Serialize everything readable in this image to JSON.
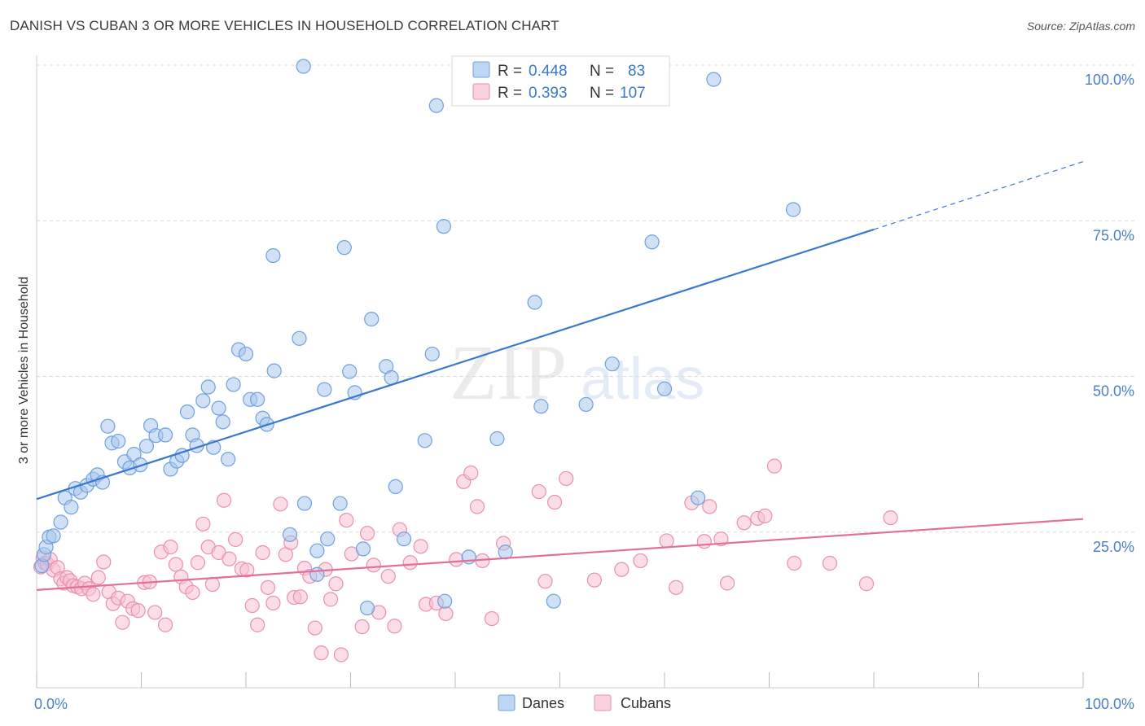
{
  "header": {
    "title": "DANISH VS CUBAN 3 OR MORE VEHICLES IN HOUSEHOLD CORRELATION CHART",
    "source": "Source: ZipAtlas.com"
  },
  "watermark": {
    "zip": "ZIP",
    "atlas": "atlas"
  },
  "legend_box": {
    "rows": [
      {
        "r_label": "R =",
        "r_value": "0.448",
        "n_label": "N =",
        "n_value": "83",
        "color": "#6fa0dc"
      },
      {
        "r_label": "R =",
        "r_value": "0.393",
        "n_label": "N =",
        "n_value": "107",
        "color": "#f0a8c0"
      }
    ]
  },
  "colors": {
    "danes_fill": "#a9c8ee",
    "danes_stroke": "#6fa0dc",
    "danes_line": "#3a78cf",
    "cubans_fill": "#f7c1d3",
    "cubans_stroke": "#ea8fad",
    "cubans_line": "#e0709a",
    "tick_text": "#4a7ec9",
    "grid": "#d9d9d9"
  },
  "chart_data": {
    "type": "scatter",
    "title": "DANISH VS CUBAN 3 OR MORE VEHICLES IN HOUSEHOLD CORRELATION CHART",
    "xlabel": "",
    "ylabel": "3 or more Vehicles in Household",
    "xlim": [
      0,
      100
    ],
    "ylim": [
      0,
      100
    ],
    "x_tick_labels": [
      "0.0%",
      "100.0%"
    ],
    "y_tick_labels": [
      "25.0%",
      "50.0%",
      "75.0%",
      "100.0%"
    ],
    "y_ticks": [
      25,
      50,
      75,
      100
    ],
    "grid": true,
    "legend_position": "bottom-center",
    "series": [
      {
        "name": "Danes",
        "r": 0.448,
        "n": 83,
        "trend": {
          "x0": 0,
          "y0": 30.3,
          "x1": 80,
          "y1": 73.6,
          "dashed_to_x": 100,
          "dashed_to_y": 84.5
        },
        "points": [
          [
            0.5,
            19.6
          ],
          [
            0.7,
            21.4
          ],
          [
            0.9,
            22.6
          ],
          [
            1.2,
            24.2
          ],
          [
            1.6,
            24.4
          ],
          [
            2.3,
            26.6
          ],
          [
            2.7,
            30.5
          ],
          [
            3.3,
            29.0
          ],
          [
            3.7,
            32.0
          ],
          [
            4.2,
            31.4
          ],
          [
            4.8,
            32.5
          ],
          [
            5.4,
            33.5
          ],
          [
            5.8,
            34.2
          ],
          [
            6.3,
            33.0
          ],
          [
            6.8,
            42.0
          ],
          [
            7.2,
            39.3
          ],
          [
            7.8,
            39.6
          ],
          [
            8.4,
            36.3
          ],
          [
            8.9,
            35.3
          ],
          [
            9.3,
            37.5
          ],
          [
            9.9,
            35.8
          ],
          [
            10.5,
            38.8
          ],
          [
            10.9,
            42.1
          ],
          [
            11.4,
            40.5
          ],
          [
            12.3,
            40.6
          ],
          [
            12.8,
            35.1
          ],
          [
            13.4,
            36.4
          ],
          [
            13.9,
            37.3
          ],
          [
            14.4,
            44.3
          ],
          [
            14.9,
            40.6
          ],
          [
            15.3,
            38.9
          ],
          [
            15.9,
            46.1
          ],
          [
            16.4,
            48.3
          ],
          [
            16.9,
            38.6
          ],
          [
            17.4,
            44.9
          ],
          [
            17.8,
            42.7
          ],
          [
            18.3,
            36.7
          ],
          [
            18.8,
            48.7
          ],
          [
            19.3,
            54.3
          ],
          [
            20.0,
            53.6
          ],
          [
            20.4,
            46.3
          ],
          [
            21.1,
            46.3
          ],
          [
            21.6,
            43.3
          ],
          [
            22.0,
            42.3
          ],
          [
            22.6,
            69.4
          ],
          [
            22.7,
            50.9
          ],
          [
            24.2,
            24.6
          ],
          [
            25.1,
            56.1
          ],
          [
            25.5,
            99.8
          ],
          [
            25.6,
            29.6
          ],
          [
            26.8,
            22.0
          ],
          [
            26.8,
            18.2
          ],
          [
            27.5,
            47.9
          ],
          [
            27.8,
            23.9
          ],
          [
            29.0,
            29.6
          ],
          [
            29.4,
            70.7
          ],
          [
            29.9,
            50.8
          ],
          [
            30.4,
            47.4
          ],
          [
            31.2,
            22.3
          ],
          [
            31.6,
            12.8
          ],
          [
            32.0,
            59.2
          ],
          [
            33.4,
            51.6
          ],
          [
            33.9,
            49.8
          ],
          [
            34.3,
            32.3
          ],
          [
            35.1,
            23.9
          ],
          [
            37.1,
            39.7
          ],
          [
            37.8,
            53.6
          ],
          [
            38.2,
            93.5
          ],
          [
            38.9,
            74.1
          ],
          [
            39.0,
            13.9
          ],
          [
            41.3,
            21.0
          ],
          [
            44.8,
            21.8
          ],
          [
            47.6,
            61.9
          ],
          [
            49.4,
            13.9
          ],
          [
            52.5,
            45.5
          ],
          [
            58.8,
            71.6
          ],
          [
            63.2,
            30.5
          ],
          [
            64.7,
            97.7
          ],
          [
            72.3,
            76.8
          ],
          [
            48.2,
            45.2
          ],
          [
            44.0,
            40.0
          ],
          [
            55.0,
            52.0
          ],
          [
            60.0,
            48.0
          ]
        ]
      },
      {
        "name": "Cubans",
        "r": 0.393,
        "n": 107,
        "trend": {
          "x0": 0,
          "y0": 15.7,
          "x1": 100,
          "y1": 27.1
        },
        "points": [
          [
            0.4,
            19.4
          ],
          [
            0.6,
            20.8
          ],
          [
            0.8,
            20.0
          ],
          [
            1.0,
            19.9
          ],
          [
            1.3,
            20.6
          ],
          [
            1.6,
            18.9
          ],
          [
            2.0,
            19.3
          ],
          [
            2.3,
            17.5
          ],
          [
            2.6,
            16.8
          ],
          [
            2.9,
            17.7
          ],
          [
            3.2,
            17.2
          ],
          [
            3.5,
            16.4
          ],
          [
            3.9,
            16.2
          ],
          [
            4.3,
            15.9
          ],
          [
            4.6,
            16.8
          ],
          [
            5.0,
            15.9
          ],
          [
            5.4,
            15.0
          ],
          [
            5.9,
            17.7
          ],
          [
            6.4,
            20.2
          ],
          [
            6.9,
            15.4
          ],
          [
            7.3,
            13.5
          ],
          [
            7.8,
            14.4
          ],
          [
            8.2,
            10.5
          ],
          [
            8.7,
            13.9
          ],
          [
            9.2,
            12.7
          ],
          [
            9.7,
            12.4
          ],
          [
            10.3,
            16.9
          ],
          [
            10.8,
            17.0
          ],
          [
            11.3,
            12.1
          ],
          [
            11.9,
            21.8
          ],
          [
            12.3,
            10.1
          ],
          [
            12.8,
            22.6
          ],
          [
            13.3,
            19.8
          ],
          [
            13.8,
            17.8
          ],
          [
            14.3,
            16.2
          ],
          [
            14.9,
            15.3
          ],
          [
            15.4,
            20.1
          ],
          [
            15.9,
            26.3
          ],
          [
            16.4,
            22.6
          ],
          [
            16.8,
            16.6
          ],
          [
            17.4,
            21.7
          ],
          [
            17.9,
            30.1
          ],
          [
            18.4,
            20.7
          ],
          [
            19.0,
            23.8
          ],
          [
            19.6,
            19.1
          ],
          [
            20.1,
            18.9
          ],
          [
            20.6,
            13.2
          ],
          [
            21.1,
            10.1
          ],
          [
            21.6,
            21.7
          ],
          [
            22.1,
            16.1
          ],
          [
            22.6,
            13.6
          ],
          [
            23.3,
            29.5
          ],
          [
            23.8,
            21.4
          ],
          [
            24.3,
            23.3
          ],
          [
            24.6,
            14.5
          ],
          [
            25.2,
            14.6
          ],
          [
            25.6,
            19.2
          ],
          [
            26.1,
            17.9
          ],
          [
            26.6,
            9.6
          ],
          [
            27.2,
            5.6
          ],
          [
            27.6,
            19.0
          ],
          [
            28.1,
            14.2
          ],
          [
            28.6,
            16.7
          ],
          [
            29.1,
            5.3
          ],
          [
            29.6,
            26.9
          ],
          [
            30.1,
            21.5
          ],
          [
            31.1,
            9.8
          ],
          [
            31.6,
            24.8
          ],
          [
            32.2,
            19.7
          ],
          [
            32.7,
            12.1
          ],
          [
            33.6,
            17.9
          ],
          [
            34.2,
            9.9
          ],
          [
            34.7,
            25.4
          ],
          [
            35.7,
            20.1
          ],
          [
            36.7,
            22.7
          ],
          [
            37.2,
            13.4
          ],
          [
            38.2,
            13.6
          ],
          [
            39.1,
            11.9
          ],
          [
            40.1,
            20.6
          ],
          [
            40.8,
            33.1
          ],
          [
            41.5,
            34.5
          ],
          [
            42.1,
            29.1
          ],
          [
            42.6,
            20.4
          ],
          [
            43.5,
            11.1
          ],
          [
            44.6,
            23.2
          ],
          [
            48.0,
            31.5
          ],
          [
            48.6,
            17.1
          ],
          [
            49.5,
            29.8
          ],
          [
            50.6,
            33.6
          ],
          [
            53.3,
            17.3
          ],
          [
            55.9,
            19.0
          ],
          [
            57.7,
            20.4
          ],
          [
            60.2,
            23.6
          ],
          [
            61.1,
            16.1
          ],
          [
            62.6,
            29.7
          ],
          [
            63.8,
            23.5
          ],
          [
            64.3,
            29.1
          ],
          [
            65.4,
            23.9
          ],
          [
            66.0,
            16.8
          ],
          [
            67.6,
            26.5
          ],
          [
            68.9,
            27.2
          ],
          [
            69.6,
            27.6
          ],
          [
            70.5,
            35.6
          ],
          [
            72.4,
            20.0
          ],
          [
            75.8,
            20.0
          ],
          [
            79.3,
            16.7
          ],
          [
            81.6,
            27.3
          ]
        ]
      }
    ]
  },
  "bottom_legend": {
    "items": [
      "Danes",
      "Cubans"
    ]
  }
}
